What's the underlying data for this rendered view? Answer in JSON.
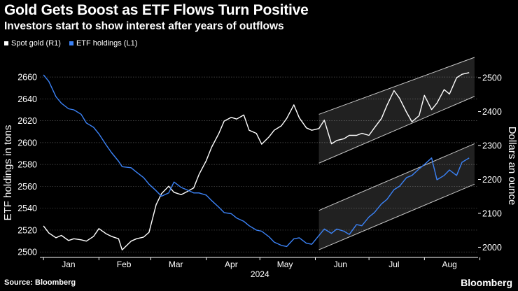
{
  "header": {
    "title": "Gold Gets Boost as ETF Flows Turn Positive",
    "subtitle": "Investors start to show interest after years of outflows"
  },
  "legend": [
    {
      "label": "Spot gold (R1)",
      "color": "#ffffff"
    },
    {
      "label": "ETF holdings (L1)",
      "color": "#3b82f6"
    }
  ],
  "footer": {
    "source": "Source: Bloomberg",
    "brand": "Bloomberg"
  },
  "colors": {
    "background": "#000000",
    "gold": "#ffffff",
    "etf": "#3b82f6",
    "grid": "#555555",
    "channel": "#c8c8c8"
  },
  "chart_data": {
    "type": "line",
    "xlabel": "2024",
    "x_ticks": [
      "Jan",
      "Feb",
      "Mar",
      "Apr",
      "May",
      "Jun",
      "Jul",
      "Aug"
    ],
    "left_axis": {
      "label": "ETF holdings in tons",
      "ticks": [
        2500,
        2520,
        2540,
        2560,
        2580,
        2600,
        2620,
        2640,
        2660
      ],
      "range": [
        2495,
        2678
      ]
    },
    "right_axis": {
      "label": "Dollars an ounce",
      "ticks": [
        2000,
        2100,
        2200,
        2300,
        2400,
        2500
      ],
      "range": [
        1970,
        2560
      ]
    },
    "grid": true,
    "series": [
      {
        "name": "Spot gold (R1)",
        "axis": "right",
        "x": [
          "2024-01-01",
          "2024-01-04",
          "2024-01-08",
          "2024-01-11",
          "2024-01-15",
          "2024-01-18",
          "2024-01-22",
          "2024-01-25",
          "2024-01-29",
          "2024-02-01",
          "2024-02-05",
          "2024-02-08",
          "2024-02-12",
          "2024-02-14",
          "2024-02-19",
          "2024-02-22",
          "2024-02-26",
          "2024-02-29",
          "2024-03-04",
          "2024-03-07",
          "2024-03-11",
          "2024-03-14",
          "2024-03-18",
          "2024-03-21",
          "2024-03-25",
          "2024-03-28",
          "2024-04-01",
          "2024-04-04",
          "2024-04-08",
          "2024-04-11",
          "2024-04-15",
          "2024-04-18",
          "2024-04-22",
          "2024-04-25",
          "2024-04-29",
          "2024-05-02",
          "2024-05-06",
          "2024-05-09",
          "2024-05-13",
          "2024-05-16",
          "2024-05-20",
          "2024-05-23",
          "2024-05-27",
          "2024-05-30",
          "2024-06-03",
          "2024-06-06",
          "2024-06-10",
          "2024-06-13",
          "2024-06-17",
          "2024-06-20",
          "2024-06-24",
          "2024-06-27",
          "2024-07-01",
          "2024-07-04",
          "2024-07-08",
          "2024-07-11",
          "2024-07-15",
          "2024-07-18",
          "2024-07-22",
          "2024-07-25",
          "2024-07-29",
          "2024-08-01",
          "2024-08-05",
          "2024-08-08",
          "2024-08-12",
          "2024-08-15",
          "2024-08-19",
          "2024-08-22",
          "2024-08-26"
        ],
        "values": [
          2063,
          2042,
          2028,
          2035,
          2020,
          2025,
          2022,
          2018,
          2032,
          2055,
          2040,
          2032,
          2025,
          1992,
          2018,
          2025,
          2030,
          2044,
          2126,
          2158,
          2180,
          2162,
          2155,
          2163,
          2175,
          2215,
          2255,
          2295,
          2335,
          2372,
          2383,
          2378,
          2390,
          2345,
          2336,
          2304,
          2325,
          2345,
          2358,
          2380,
          2420,
          2382,
          2352,
          2345,
          2350,
          2375,
          2305,
          2315,
          2320,
          2330,
          2330,
          2336,
          2330,
          2352,
          2380,
          2418,
          2462,
          2440,
          2398,
          2370,
          2388,
          2448,
          2406,
          2425,
          2465,
          2452,
          2500,
          2510,
          2515
        ]
      },
      {
        "name": "ETF holdings (L1)",
        "axis": "left",
        "x": [
          "2024-01-01",
          "2024-01-04",
          "2024-01-08",
          "2024-01-11",
          "2024-01-15",
          "2024-01-18",
          "2024-01-22",
          "2024-01-25",
          "2024-01-29",
          "2024-02-01",
          "2024-02-05",
          "2024-02-08",
          "2024-02-12",
          "2024-02-14",
          "2024-02-19",
          "2024-02-22",
          "2024-02-26",
          "2024-02-29",
          "2024-03-04",
          "2024-03-07",
          "2024-03-11",
          "2024-03-14",
          "2024-03-18",
          "2024-03-21",
          "2024-03-25",
          "2024-03-28",
          "2024-04-01",
          "2024-04-04",
          "2024-04-08",
          "2024-04-11",
          "2024-04-15",
          "2024-04-18",
          "2024-04-22",
          "2024-04-25",
          "2024-04-29",
          "2024-05-02",
          "2024-05-06",
          "2024-05-09",
          "2024-05-13",
          "2024-05-16",
          "2024-05-20",
          "2024-05-23",
          "2024-05-27",
          "2024-05-30",
          "2024-06-03",
          "2024-06-06",
          "2024-06-10",
          "2024-06-13",
          "2024-06-17",
          "2024-06-20",
          "2024-06-24",
          "2024-06-27",
          "2024-07-01",
          "2024-07-04",
          "2024-07-08",
          "2024-07-11",
          "2024-07-15",
          "2024-07-18",
          "2024-07-22",
          "2024-07-25",
          "2024-07-29",
          "2024-08-01",
          "2024-08-05",
          "2024-08-08",
          "2024-08-12",
          "2024-08-15",
          "2024-08-19",
          "2024-08-22",
          "2024-08-26"
        ],
        "values": [
          2662,
          2656,
          2642,
          2636,
          2631,
          2630,
          2626,
          2618,
          2614,
          2608,
          2598,
          2591,
          2583,
          2578,
          2577,
          2573,
          2568,
          2562,
          2556,
          2551,
          2554,
          2564,
          2559,
          2557,
          2554,
          2554,
          2552,
          2547,
          2541,
          2536,
          2535,
          2531,
          2528,
          2524,
          2520,
          2519,
          2514,
          2509,
          2506,
          2505,
          2512,
          2513,
          2508,
          2507,
          2515,
          2521,
          2517,
          2521,
          2519,
          2516,
          2525,
          2524,
          2532,
          2536,
          2544,
          2548,
          2557,
          2560,
          2568,
          2570,
          2576,
          2580,
          2586,
          2566,
          2570,
          2575,
          2570,
          2582,
          2586
        ]
      }
    ],
    "channels": [
      {
        "series": "Spot gold (R1)",
        "start": "2024-06-03",
        "end": "2024-08-29",
        "lower_start": 2248,
        "lower_end": 2445,
        "upper_start": 2392,
        "upper_end": 2560
      },
      {
        "series": "ETF holdings (L1)",
        "start": "2024-06-03",
        "end": "2024-08-29",
        "lower_start": 2502,
        "lower_end": 2562,
        "upper_start": 2538,
        "upper_end": 2599
      }
    ]
  }
}
